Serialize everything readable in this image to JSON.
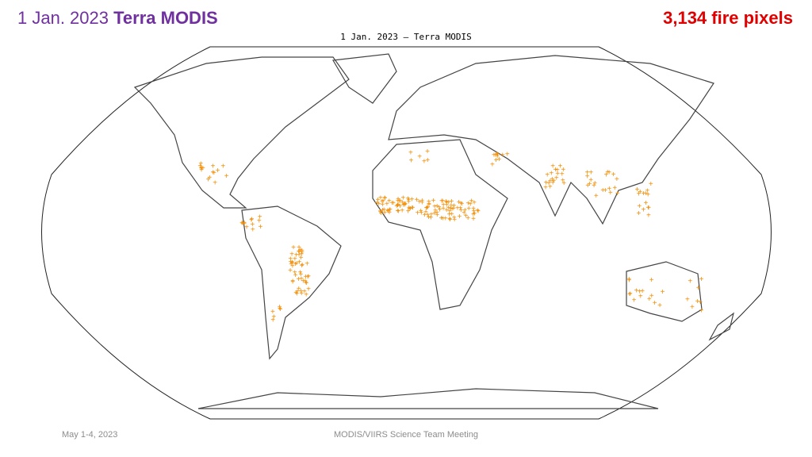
{
  "header": {
    "date": "1 Jan. 2023",
    "instrument": "Terra MODIS",
    "fire_count": "3,134 fire pixels"
  },
  "map": {
    "title": "1 Jan. 2023 — Terra MODIS"
  },
  "footer": {
    "date": "May 1-4, 2023",
    "event": "MODIS/VIIRS Science Team Meeting"
  }
}
